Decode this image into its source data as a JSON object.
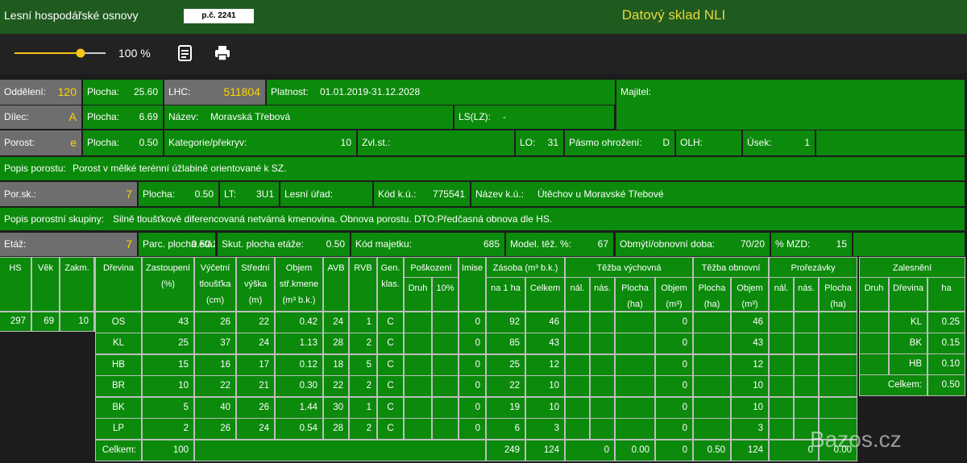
{
  "header": {
    "title": "Lesní hospodářské osnovy",
    "parcel": "p.č. 2241",
    "app_title": "Datový sklad NLI"
  },
  "toolbar": {
    "zoom": "100 %"
  },
  "fields": [
    [
      {
        "label": "Oddělení:",
        "value": "120"
      },
      {
        "label": "Plocha:",
        "value": "25.60"
      },
      {
        "label": "LHC:",
        "value": "511804"
      },
      {
        "label": "Platnost:",
        "value": "01.01.2019-31.12.2028"
      },
      {
        "label": "Majitel:"
      }
    ],
    [
      {
        "label": "Dílec:",
        "value": "A"
      },
      {
        "label": "Plocha:",
        "value": "6.69"
      },
      {
        "label": "Název:",
        "value": "Moravská Třebová"
      },
      {
        "label": "LS(LZ):",
        "value": "-"
      }
    ],
    [
      {
        "label": "Porost:",
        "value": "e"
      },
      {
        "label": "Plocha:",
        "value": "0.50"
      },
      {
        "label": "Kategorie/překryv:",
        "value": "10"
      },
      {
        "label": "Zvl.st.:"
      },
      {
        "label": "LO:",
        "value": "31"
      },
      {
        "label": "Pásmo ohrožení:",
        "value": "D"
      },
      {
        "label": "OLH:"
      },
      {
        "label": "Úsek:",
        "value": "1"
      }
    ],
    [
      {
        "label": "Popis porostu:",
        "value": "Porost v mělké terénní úžlabině orientované k SZ."
      }
    ],
    [
      {
        "label": "Por.sk.:",
        "value": "7"
      },
      {
        "label": "Plocha:",
        "value": "0.50"
      },
      {
        "label": "LT:",
        "value": "3U1"
      },
      {
        "label": "Lesní úřad:"
      },
      {
        "label": "Kód k.ú.:",
        "value": "775541"
      },
      {
        "label": "Název k.ú.:",
        "value": "Útěchov u Moravské Třebové"
      }
    ],
    [
      {
        "label": "Popis porostní skupiny:",
        "value": "Silně tloušťkově diferencovaná netvárná kmenovina. Obnova porostu. DTO:Předčasná obnova dle HS."
      }
    ],
    [
      {
        "label": "Etáž:",
        "value": "7"
      },
      {
        "label": "Parc. plocha etáže:",
        "value": "0.50"
      },
      {
        "label": "Skut. plocha etáže:",
        "value": "0.50"
      },
      {
        "label": "Kód majetku:",
        "value": "685"
      },
      {
        "label": "Model. těž. %:",
        "value": "67"
      },
      {
        "label": "Obmýtí/obnovní doba:",
        "value": "70/20"
      },
      {
        "label": "% MZD:",
        "value": "15"
      }
    ]
  ],
  "age_table": {
    "columns": [
      "HS",
      "Věk",
      "Zakm."
    ],
    "row": [
      "297",
      "69",
      "10"
    ]
  },
  "species_table": {
    "groups": [
      "Poškození",
      "Zásoba (m³ b.k.)",
      "Těžba výchovná",
      "Těžba obnovní",
      "Prořezávky"
    ],
    "columns": [
      "Dřevina",
      "Zastoupení (%)",
      "Výčetní tloušťka (cm)",
      "Střední výška (m)",
      "Objem stř.kmene (m³ b.k.)",
      "AVB",
      "RVB",
      "Gen. klas.",
      "Druh",
      "10%",
      "Imise",
      "na 1 ha",
      "Celkem",
      "nál.",
      "nás.",
      "Plocha (ha)",
      "Objem (m³)",
      "Plocha (ha)",
      "Objem (m³)",
      "nál.",
      "nás.",
      "Plocha (ha)"
    ],
    "rows": [
      [
        "OS",
        "43",
        "26",
        "22",
        "0.42",
        "24",
        "1",
        "C",
        null,
        null,
        "0",
        "92",
        "46",
        null,
        null,
        null,
        "0",
        null,
        "46",
        null,
        null,
        null
      ],
      [
        "KL",
        "25",
        "37",
        "24",
        "1.13",
        "28",
        "2",
        "C",
        null,
        null,
        "0",
        "85",
        "43",
        null,
        null,
        null,
        "0",
        null,
        "43",
        null,
        null,
        null
      ],
      [
        "HB",
        "15",
        "16",
        "17",
        "0.12",
        "18",
        "5",
        "C",
        null,
        null,
        "0",
        "25",
        "12",
        null,
        null,
        null,
        "0",
        null,
        "12",
        null,
        null,
        null
      ],
      [
        "BR",
        "10",
        "22",
        "21",
        "0.30",
        "22",
        "2",
        "C",
        null,
        null,
        "0",
        "22",
        "10",
        null,
        null,
        null,
        "0",
        null,
        "10",
        null,
        null,
        null
      ],
      [
        "BK",
        "5",
        "40",
        "26",
        "1.44",
        "30",
        "1",
        "C",
        null,
        null,
        "0",
        "19",
        "10",
        null,
        null,
        null,
        "0",
        null,
        "10",
        null,
        null,
        null
      ],
      [
        "LP",
        "2",
        "26",
        "24",
        "0.54",
        "28",
        "2",
        "C",
        null,
        null,
        "0",
        "6",
        "3",
        null,
        null,
        null,
        "0",
        null,
        "3",
        null,
        null,
        null
      ]
    ],
    "totals": [
      "Celkem:",
      "100",
      null,
      "249",
      "124",
      "0",
      "0.00",
      "0",
      "0.50",
      "124",
      "0",
      "0.00"
    ]
  },
  "afforestation_table": {
    "title": "Zalesnění",
    "columns": [
      "Druh",
      "Dřevina",
      "ha"
    ],
    "rows": [
      [
        null,
        "KL",
        "0.25"
      ],
      [
        null,
        "BK",
        "0.15"
      ],
      [
        null,
        "HB",
        "0.10"
      ]
    ],
    "totals": [
      "Celkem:",
      "0.50"
    ]
  },
  "watermark": "Bazos.cz"
}
